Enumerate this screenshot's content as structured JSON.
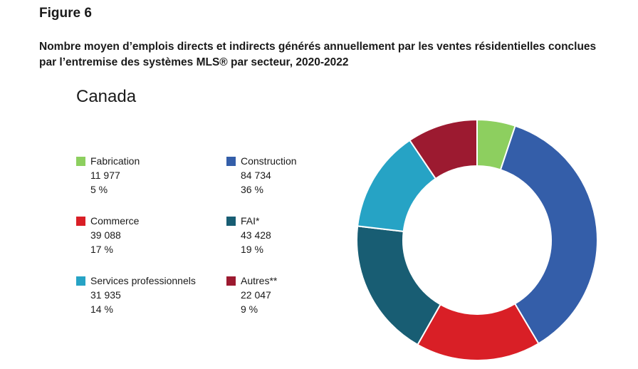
{
  "figure_label": "Figure 6",
  "caption": "Nombre moyen d’emplois directs et indirects générés annuellement par les ventes résidentielles conclues par l’entremise des systèmes MLS® par secteur, 2020-2022",
  "chart_data": {
    "type": "pie",
    "style": "donut",
    "title": "Canada",
    "legend_position": "left",
    "slices": [
      {
        "name": "Fabrication",
        "value": 11977,
        "value_label": "11 977",
        "percent_label": "5 %",
        "color": "#8dcf5f"
      },
      {
        "name": "Construction",
        "value": 84734,
        "value_label": "84 734",
        "percent_label": "36 %",
        "color": "#345ea9"
      },
      {
        "name": "Commerce",
        "value": 39088,
        "value_label": "39 088",
        "percent_label": "17 %",
        "color": "#d91f26"
      },
      {
        "name": "FAI*",
        "value": 43428,
        "value_label": "43 428",
        "percent_label": "19 %",
        "color": "#185d73"
      },
      {
        "name": "Services professionnels",
        "value": 31935,
        "value_label": "31 935",
        "percent_label": "14 %",
        "color": "#26a3c5"
      },
      {
        "name": "Autres**",
        "value": 22047,
        "value_label": "22 047",
        "percent_label": "9 %",
        "color": "#9c1a30"
      }
    ]
  }
}
